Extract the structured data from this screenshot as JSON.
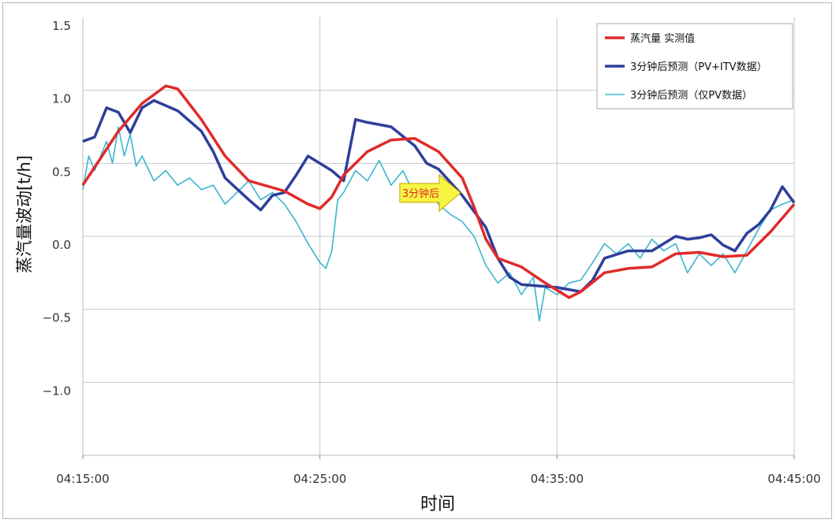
{
  "chart_data": {
    "type": "line",
    "title": "",
    "xlabel": "时间",
    "ylabel": "蒸汽量波动[t/h]",
    "xlim": [
      "04:15:00",
      "04:45:00"
    ],
    "ylim": [
      -1.5,
      1.5
    ],
    "x_ticks": [
      "04:15:00",
      "04:25:00",
      "04:35:00",
      "04:45:00"
    ],
    "y_ticks": [
      1.5,
      1.0,
      0.5,
      0.0,
      -0.5,
      -1.0
    ],
    "y_tick_labels": [
      "1.5",
      "1.0",
      "0.5",
      "0.0",
      "−0.5",
      "−1.0"
    ],
    "grid": true,
    "legend_position": "top-right",
    "annotation": {
      "text": "3分钟后",
      "x": "04:28:30",
      "y": 0.4,
      "fill": "#f5f542",
      "text_color": "#e8262a"
    },
    "series": [
      {
        "name": "蒸汽量 实测值",
        "color": "#e02a2a",
        "points": [
          [
            "04:15:00",
            0.35
          ],
          [
            "04:16:30",
            0.72
          ],
          [
            "04:17:30",
            0.91
          ],
          [
            "04:18:30",
            1.03
          ],
          [
            "04:19:00",
            1.01
          ],
          [
            "04:20:00",
            0.8
          ],
          [
            "04:21:00",
            0.55
          ],
          [
            "04:22:00",
            0.38
          ],
          [
            "04:23:30",
            0.31
          ],
          [
            "04:24:30",
            0.22
          ],
          [
            "04:25:00",
            0.19
          ],
          [
            "04:25:30",
            0.27
          ],
          [
            "04:26:00",
            0.42
          ],
          [
            "04:27:00",
            0.58
          ],
          [
            "04:28:00",
            0.66
          ],
          [
            "04:29:00",
            0.67
          ],
          [
            "04:30:00",
            0.58
          ],
          [
            "04:31:00",
            0.4
          ],
          [
            "04:31:30",
            0.2
          ],
          [
            "04:32:00",
            -0.02
          ],
          [
            "04:32:30",
            -0.15
          ],
          [
            "04:33:30",
            -0.21
          ],
          [
            "04:34:30",
            -0.32
          ],
          [
            "04:35:30",
            -0.42
          ],
          [
            "04:36:00",
            -0.38
          ],
          [
            "04:37:00",
            -0.25
          ],
          [
            "04:38:00",
            -0.22
          ],
          [
            "04:39:00",
            -0.21
          ],
          [
            "04:40:00",
            -0.12
          ],
          [
            "04:41:00",
            -0.11
          ],
          [
            "04:42:00",
            -0.14
          ],
          [
            "04:43:00",
            -0.13
          ],
          [
            "04:44:00",
            0.03
          ],
          [
            "04:45:00",
            0.22
          ]
        ]
      },
      {
        "name": "3分钟后预测（PV+ITV数据）",
        "color": "#2e3f9a",
        "points": [
          [
            "04:15:00",
            0.65
          ],
          [
            "04:15:30",
            0.68
          ],
          [
            "04:16:00",
            0.88
          ],
          [
            "04:16:30",
            0.85
          ],
          [
            "04:17:00",
            0.71
          ],
          [
            "04:17:30",
            0.88
          ],
          [
            "04:18:00",
            0.93
          ],
          [
            "04:19:00",
            0.86
          ],
          [
            "04:20:00",
            0.72
          ],
          [
            "04:20:30",
            0.58
          ],
          [
            "04:21:00",
            0.4
          ],
          [
            "04:22:00",
            0.25
          ],
          [
            "04:22:30",
            0.18
          ],
          [
            "04:23:00",
            0.28
          ],
          [
            "04:23:30",
            0.3
          ],
          [
            "04:24:00",
            0.42
          ],
          [
            "04:24:30",
            0.55
          ],
          [
            "04:25:30",
            0.45
          ],
          [
            "04:26:00",
            0.38
          ],
          [
            "04:26:30",
            0.8
          ],
          [
            "04:27:00",
            0.78
          ],
          [
            "04:28:00",
            0.75
          ],
          [
            "04:29:00",
            0.62
          ],
          [
            "04:29:30",
            0.5
          ],
          [
            "04:30:00",
            0.46
          ],
          [
            "04:31:00",
            0.28
          ],
          [
            "04:32:00",
            0.06
          ],
          [
            "04:32:30",
            -0.15
          ],
          [
            "04:33:00",
            -0.28
          ],
          [
            "04:33:30",
            -0.33
          ],
          [
            "04:35:00",
            -0.35
          ],
          [
            "04:36:00",
            -0.38
          ],
          [
            "04:36:30",
            -0.3
          ],
          [
            "04:37:00",
            -0.15
          ],
          [
            "04:38:00",
            -0.1
          ],
          [
            "04:39:00",
            -0.1
          ],
          [
            "04:40:00",
            0.0
          ],
          [
            "04:40:30",
            -0.02
          ],
          [
            "04:41:00",
            -0.01
          ],
          [
            "04:41:30",
            0.01
          ],
          [
            "04:42:00",
            -0.06
          ],
          [
            "04:42:30",
            -0.1
          ],
          [
            "04:43:00",
            0.02
          ],
          [
            "04:43:30",
            0.08
          ],
          [
            "04:44:00",
            0.18
          ],
          [
            "04:44:30",
            0.34
          ],
          [
            "04:45:00",
            0.23
          ]
        ]
      },
      {
        "name": "3分钟后预测（仅PV数据）",
        "color": "#3bb5d0",
        "points": [
          [
            "04:15:00",
            0.32
          ],
          [
            "04:15:15",
            0.55
          ],
          [
            "04:15:30",
            0.45
          ],
          [
            "04:16:00",
            0.65
          ],
          [
            "04:16:15",
            0.5
          ],
          [
            "04:16:30",
            0.75
          ],
          [
            "04:16:45",
            0.55
          ],
          [
            "04:17:00",
            0.7
          ],
          [
            "04:17:15",
            0.48
          ],
          [
            "04:17:30",
            0.55
          ],
          [
            "04:18:00",
            0.38
          ],
          [
            "04:18:30",
            0.45
          ],
          [
            "04:19:00",
            0.35
          ],
          [
            "04:19:30",
            0.4
          ],
          [
            "04:20:00",
            0.32
          ],
          [
            "04:20:30",
            0.35
          ],
          [
            "04:21:00",
            0.22
          ],
          [
            "04:21:30",
            0.3
          ],
          [
            "04:22:00",
            0.38
          ],
          [
            "04:22:30",
            0.25
          ],
          [
            "04:23:00",
            0.3
          ],
          [
            "04:23:30",
            0.22
          ],
          [
            "04:24:00",
            0.1
          ],
          [
            "04:24:30",
            -0.05
          ],
          [
            "04:25:00",
            -0.18
          ],
          [
            "04:25:15",
            -0.22
          ],
          [
            "04:25:30",
            -0.1
          ],
          [
            "04:25:45",
            0.25
          ],
          [
            "04:26:00",
            0.3
          ],
          [
            "04:26:30",
            0.45
          ],
          [
            "04:27:00",
            0.38
          ],
          [
            "04:27:30",
            0.52
          ],
          [
            "04:28:00",
            0.35
          ],
          [
            "04:28:30",
            0.45
          ],
          [
            "04:29:00",
            0.28
          ],
          [
            "04:29:30",
            0.35
          ],
          [
            "04:30:00",
            0.22
          ],
          [
            "04:30:30",
            0.15
          ],
          [
            "04:31:00",
            0.1
          ],
          [
            "04:31:30",
            0.0
          ],
          [
            "04:32:00",
            -0.2
          ],
          [
            "04:32:30",
            -0.32
          ],
          [
            "04:33:00",
            -0.25
          ],
          [
            "04:33:30",
            -0.4
          ],
          [
            "04:34:00",
            -0.28
          ],
          [
            "04:34:15",
            -0.58
          ],
          [
            "04:34:30",
            -0.35
          ],
          [
            "04:35:00",
            -0.4
          ],
          [
            "04:35:30",
            -0.32
          ],
          [
            "04:36:00",
            -0.3
          ],
          [
            "04:36:30",
            -0.18
          ],
          [
            "04:37:00",
            -0.05
          ],
          [
            "04:37:30",
            -0.12
          ],
          [
            "04:38:00",
            -0.05
          ],
          [
            "04:38:30",
            -0.15
          ],
          [
            "04:39:00",
            -0.02
          ],
          [
            "04:39:30",
            -0.1
          ],
          [
            "04:40:00",
            -0.05
          ],
          [
            "04:40:30",
            -0.25
          ],
          [
            "04:41:00",
            -0.12
          ],
          [
            "04:41:30",
            -0.2
          ],
          [
            "04:42:00",
            -0.12
          ],
          [
            "04:42:30",
            -0.25
          ],
          [
            "04:43:00",
            -0.1
          ],
          [
            "04:43:30",
            0.05
          ],
          [
            "04:44:00",
            0.18
          ],
          [
            "04:44:30",
            0.22
          ],
          [
            "04:45:00",
            0.25
          ]
        ]
      }
    ]
  }
}
